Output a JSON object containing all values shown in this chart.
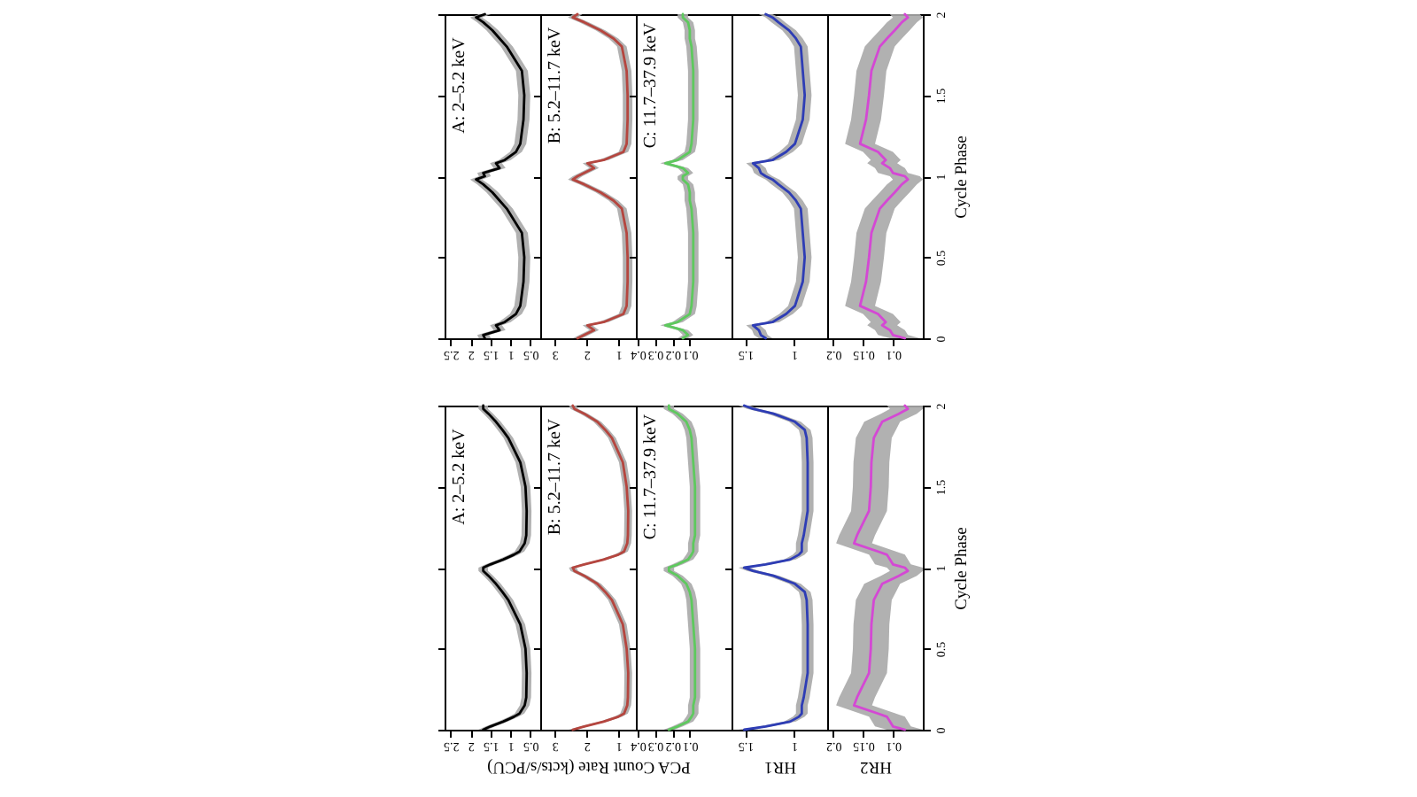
{
  "chart_data": [
    {
      "type": "line",
      "orientation": "horizontal",
      "x": [
        0,
        0.02,
        0.05,
        0.08,
        0.1,
        0.15,
        0.2,
        0.35,
        0.5,
        0.65,
        0.8,
        0.85,
        0.9,
        0.95,
        0.98,
        1,
        1.02,
        1.05,
        1.08,
        1.1,
        1.15,
        1.2,
        1.35,
        1.5,
        1.65,
        1.8,
        1.85,
        1.9,
        1.95,
        1.98,
        2
      ],
      "series": [
        {
          "color": "#000000",
          "values": [
            1.64,
            1.68,
            1.27,
            1.36,
            1.14,
            0.86,
            0.75,
            0.67,
            0.65,
            0.71,
            1.09,
            1.27,
            1.45,
            1.68,
            1.86,
            1.64,
            1.68,
            1.27,
            1.36,
            1.14,
            0.86,
            0.75,
            0.67,
            0.65,
            0.71,
            1.09,
            1.27,
            1.45,
            1.68,
            1.86,
            1.64
          ],
          "lower": [
            1.49,
            1.53,
            1.12,
            1.21,
            0.99,
            0.71,
            0.6,
            0.52,
            0.5,
            0.56,
            0.94,
            1.12,
            1.3,
            1.53,
            1.71,
            1.49,
            1.53,
            1.12,
            1.21,
            0.99,
            0.71,
            0.6,
            0.52,
            0.5,
            0.56,
            0.94,
            1.12,
            1.3,
            1.53,
            1.71,
            1.49
          ],
          "upper": [
            1.79,
            1.83,
            1.42,
            1.51,
            1.29,
            1.01,
            0.9,
            0.82,
            0.8,
            0.86,
            1.24,
            1.42,
            1.6,
            1.83,
            2.01,
            1.79,
            1.83,
            1.42,
            1.51,
            1.29,
            1.01,
            0.9,
            0.82,
            0.8,
            0.86,
            1.24,
            1.42,
            1.6,
            1.83,
            2.01,
            1.79
          ]
        }
      ],
      "xlim": [
        2.65,
        0.25
      ],
      "xticks": [
        2.5,
        2,
        1.5,
        1,
        0.5
      ],
      "ylim": [
        0,
        2
      ],
      "yticks": [
        0,
        0.5,
        1,
        1.5,
        2
      ],
      "tick_labels": "x",
      "annotations": [
        "A: 2–5.2 keV"
      ]
    },
    {
      "type": "line",
      "orientation": "horizontal",
      "x": [
        0,
        0.02,
        0.05,
        0.08,
        0.1,
        0.15,
        0.2,
        0.35,
        0.5,
        0.65,
        0.8,
        0.85,
        0.9,
        0.95,
        0.98,
        1,
        1.02,
        1.05,
        1.08,
        1.1,
        1.15,
        1.2,
        1.35,
        1.5,
        1.65,
        1.8,
        1.85,
        1.9,
        1.95,
        1.98,
        2
      ],
      "series": [
        {
          "color": "#b5463f",
          "values": [
            2.28,
            2.07,
            1.76,
            1.97,
            1.46,
            0.84,
            0.74,
            0.71,
            0.71,
            0.74,
            0.89,
            1.15,
            1.56,
            2.07,
            2.43,
            2.28,
            2.07,
            1.76,
            1.97,
            1.46,
            0.84,
            0.74,
            0.71,
            0.71,
            0.74,
            0.89,
            1.15,
            1.56,
            2.07,
            2.43,
            2.28
          ],
          "lower": [
            2.13,
            1.92,
            1.61,
            1.82,
            1.31,
            0.69,
            0.59,
            0.56,
            0.56,
            0.59,
            0.74,
            1.0,
            1.41,
            1.92,
            2.28,
            2.13,
            1.92,
            1.61,
            1.82,
            1.31,
            0.69,
            0.59,
            0.56,
            0.56,
            0.59,
            0.74,
            1.0,
            1.41,
            1.92,
            2.28,
            2.13
          ],
          "upper": [
            2.43,
            2.22,
            1.91,
            2.12,
            1.61,
            0.99,
            0.89,
            0.86,
            0.86,
            0.89,
            1.04,
            1.3,
            1.71,
            2.22,
            2.58,
            2.43,
            2.22,
            1.91,
            2.12,
            1.61,
            0.99,
            0.89,
            0.86,
            0.86,
            0.89,
            1.04,
            1.3,
            1.71,
            2.22,
            2.58,
            2.43
          ]
        }
      ],
      "xlim": [
        3.45,
        0.45
      ],
      "xticks": [
        3,
        2,
        1
      ],
      "ylim": [
        0,
        2
      ],
      "yticks": [
        0,
        0.5,
        1,
        1.5,
        2
      ],
      "tick_labels": "x",
      "annotations": [
        "B: 5.2–11.7 keV"
      ]
    },
    {
      "type": "line",
      "orientation": "horizontal",
      "x": [
        0,
        0.02,
        0.05,
        0.08,
        0.1,
        0.15,
        0.2,
        0.35,
        0.5,
        0.65,
        0.8,
        0.85,
        0.9,
        0.95,
        0.98,
        1,
        1.02,
        1.05,
        1.08,
        1.1,
        1.15,
        1.2,
        1.35,
        1.5,
        1.65,
        1.8,
        1.85,
        1.9,
        1.95,
        1.98,
        2
      ],
      "series": [
        {
          "color": "#5ec95e",
          "values": [
            0.14,
            0.11,
            0.14,
            0.24,
            0.17,
            0.1,
            0.09,
            0.08,
            0.08,
            0.08,
            0.09,
            0.1,
            0.1,
            0.11,
            0.14,
            0.14,
            0.11,
            0.14,
            0.24,
            0.17,
            0.1,
            0.09,
            0.08,
            0.08,
            0.08,
            0.09,
            0.1,
            0.1,
            0.11,
            0.14,
            0.14
          ],
          "lower": [
            0.11,
            0.08,
            0.11,
            0.21,
            0.14,
            0.07,
            0.06,
            0.05,
            0.05,
            0.05,
            0.06,
            0.07,
            0.07,
            0.08,
            0.11,
            0.11,
            0.08,
            0.11,
            0.21,
            0.14,
            0.07,
            0.06,
            0.05,
            0.05,
            0.05,
            0.06,
            0.07,
            0.07,
            0.08,
            0.11,
            0.11
          ],
          "upper": [
            0.17,
            0.14,
            0.17,
            0.27,
            0.2,
            0.13,
            0.12,
            0.11,
            0.11,
            0.11,
            0.12,
            0.13,
            0.13,
            0.14,
            0.17,
            0.17,
            0.14,
            0.17,
            0.27,
            0.2,
            0.13,
            0.12,
            0.11,
            0.11,
            0.11,
            0.12,
            0.13,
            0.13,
            0.14,
            0.17,
            0.17
          ]
        }
      ],
      "xlim": [
        0.41,
        -0.14
      ],
      "xticks": [
        0.4,
        0.3,
        0.2,
        0.1
      ],
      "ylim": [
        0,
        2
      ],
      "yticks": [
        0,
        0.5,
        1,
        1.5,
        2
      ],
      "tick_labels": "x",
      "annotations": [
        "C: 11.7–37.9 keV"
      ]
    },
    {
      "type": "line",
      "orientation": "horizontal",
      "x": [
        0,
        0.02,
        0.05,
        0.08,
        0.1,
        0.15,
        0.2,
        0.35,
        0.5,
        0.65,
        0.8,
        0.85,
        0.9,
        0.95,
        0.98,
        1,
        1.02,
        1.05,
        1.08,
        1.1,
        1.15,
        1.2,
        1.35,
        1.5,
        1.65,
        1.8,
        1.85,
        1.9,
        1.95,
        1.98,
        2
      ],
      "series": [
        {
          "color": "#2e3db5",
          "values": [
            1.29,
            1.34,
            1.36,
            1.42,
            1.22,
            1.08,
            0.99,
            0.91,
            0.89,
            0.91,
            0.93,
            0.98,
            1.05,
            1.16,
            1.22,
            1.29,
            1.34,
            1.36,
            1.42,
            1.22,
            1.08,
            0.99,
            0.91,
            0.89,
            0.91,
            0.93,
            0.98,
            1.05,
            1.16,
            1.22,
            1.29
          ],
          "lower": [
            1.22,
            1.27,
            1.29,
            1.35,
            1.15,
            1.01,
            0.92,
            0.84,
            0.82,
            0.84,
            0.86,
            0.91,
            0.98,
            1.09,
            1.15,
            1.22,
            1.27,
            1.29,
            1.35,
            1.15,
            1.01,
            0.92,
            0.84,
            0.82,
            0.84,
            0.86,
            0.91,
            0.98,
            1.09,
            1.15,
            1.22
          ],
          "upper": [
            1.36,
            1.41,
            1.43,
            1.49,
            1.29,
            1.15,
            1.06,
            0.98,
            0.96,
            0.98,
            1.0,
            1.05,
            1.12,
            1.23,
            1.29,
            1.36,
            1.41,
            1.43,
            1.49,
            1.29,
            1.15,
            1.06,
            0.98,
            0.96,
            0.98,
            1.0,
            1.05,
            1.12,
            1.23,
            1.29,
            1.36
          ]
        }
      ],
      "xlim": [
        1.64,
        0.66
      ],
      "xticks": [
        1.5,
        1
      ],
      "ylim": [
        0,
        2
      ],
      "yticks": [
        0,
        0.5,
        1,
        1.5,
        2
      ],
      "tick_labels": "x"
    },
    {
      "type": "line",
      "orientation": "horizontal",
      "x": [
        0,
        0.02,
        0.05,
        0.08,
        0.1,
        0.15,
        0.2,
        0.35,
        0.5,
        0.65,
        0.8,
        0.85,
        0.9,
        0.95,
        0.98,
        1,
        1.02,
        1.05,
        1.08,
        1.1,
        1.15,
        1.2,
        1.35,
        1.5,
        1.65,
        1.8,
        1.85,
        1.9,
        1.95,
        1.98,
        2
      ],
      "series": [
        {
          "color": "#d448d4",
          "values": [
            0.08,
            0.1,
            0.105,
            0.118,
            0.112,
            0.125,
            0.155,
            0.145,
            0.14,
            0.136,
            0.122,
            0.11,
            0.097,
            0.085,
            0.075,
            0.08,
            0.1,
            0.105,
            0.118,
            0.112,
            0.125,
            0.155,
            0.145,
            0.14,
            0.136,
            0.122,
            0.11,
            0.097,
            0.085,
            0.075,
            0.08
          ],
          "lower": [
            0.055,
            0.075,
            0.08,
            0.093,
            0.087,
            0.1,
            0.13,
            0.12,
            0.115,
            0.111,
            0.097,
            0.085,
            0.072,
            0.06,
            0.05,
            0.055,
            0.075,
            0.08,
            0.093,
            0.087,
            0.1,
            0.13,
            0.12,
            0.115,
            0.111,
            0.097,
            0.085,
            0.072,
            0.06,
            0.05,
            0.055
          ],
          "upper": [
            0.105,
            0.125,
            0.13,
            0.143,
            0.137,
            0.15,
            0.18,
            0.17,
            0.165,
            0.161,
            0.147,
            0.135,
            0.122,
            0.11,
            0.1,
            0.105,
            0.125,
            0.13,
            0.143,
            0.137,
            0.15,
            0.18,
            0.17,
            0.165,
            0.161,
            0.147,
            0.135,
            0.122,
            0.11,
            0.1,
            0.105
          ]
        }
      ],
      "xlim": [
        0.21,
        0.05
      ],
      "xticks": [
        0.2,
        0.15,
        0.1
      ],
      "ylim": [
        0,
        2
      ],
      "yticks": [
        0,
        0.5,
        1,
        1.5,
        2
      ],
      "ylabel": "Cycle Phase"
    },
    {
      "type": "line",
      "orientation": "horizontal",
      "x": [
        0,
        0.02,
        0.05,
        0.08,
        0.1,
        0.15,
        0.2,
        0.35,
        0.5,
        0.65,
        0.8,
        0.85,
        0.9,
        0.95,
        0.98,
        1,
        1.02,
        1.05,
        1.08,
        1.1,
        1.15,
        1.2,
        1.35,
        1.5,
        1.65,
        1.8,
        1.85,
        1.9,
        1.95,
        1.98,
        2
      ],
      "series": [
        {
          "color": "#000000",
          "values": [
            1.68,
            1.5,
            1.18,
            0.91,
            0.77,
            0.64,
            0.6,
            0.59,
            0.62,
            0.75,
            1.05,
            1.2,
            1.36,
            1.55,
            1.68,
            1.68,
            1.5,
            1.18,
            0.91,
            0.77,
            0.64,
            0.6,
            0.59,
            0.62,
            0.75,
            1.05,
            1.2,
            1.36,
            1.55,
            1.68,
            1.68
          ],
          "lower": [
            1.56,
            1.38,
            1.06,
            0.79,
            0.65,
            0.52,
            0.48,
            0.47,
            0.5,
            0.63,
            0.93,
            1.08,
            1.24,
            1.43,
            1.56,
            1.56,
            1.38,
            1.06,
            0.79,
            0.65,
            0.52,
            0.48,
            0.47,
            0.5,
            0.63,
            0.93,
            1.08,
            1.24,
            1.43,
            1.56,
            1.56
          ],
          "upper": [
            1.8,
            1.62,
            1.3,
            1.03,
            0.89,
            0.76,
            0.72,
            0.71,
            0.74,
            0.87,
            1.17,
            1.32,
            1.48,
            1.67,
            1.8,
            1.8,
            1.62,
            1.3,
            1.03,
            0.89,
            0.76,
            0.72,
            0.71,
            0.74,
            0.87,
            1.17,
            1.32,
            1.48,
            1.67,
            1.8,
            1.8
          ]
        }
      ],
      "xlim": [
        2.65,
        0.25
      ],
      "xticks": [
        2.5,
        2,
        1.5,
        1,
        0.5
      ],
      "ylim": [
        0,
        2
      ],
      "yticks": [
        0,
        0.5,
        1,
        1.5,
        2
      ],
      "tick_labels": "x",
      "annotations": [
        "A: 2–5.2 keV"
      ]
    },
    {
      "type": "line",
      "orientation": "horizontal",
      "x": [
        0,
        0.02,
        0.05,
        0.08,
        0.1,
        0.15,
        0.2,
        0.35,
        0.5,
        0.65,
        0.8,
        0.85,
        0.9,
        0.95,
        0.98,
        1,
        1.02,
        1.05,
        1.08,
        1.1,
        1.15,
        1.2,
        1.35,
        1.5,
        1.65,
        1.8,
        1.85,
        1.9,
        1.95,
        1.98,
        2
      ],
      "series": [
        {
          "color": "#b5463f",
          "values": [
            2.43,
            2.07,
            1.46,
            1.0,
            0.82,
            0.72,
            0.7,
            0.69,
            0.74,
            0.86,
            1.2,
            1.41,
            1.66,
            2.07,
            2.38,
            2.43,
            2.07,
            1.46,
            1.0,
            0.82,
            0.72,
            0.7,
            0.69,
            0.74,
            0.86,
            1.2,
            1.41,
            1.66,
            2.07,
            2.38,
            2.43
          ],
          "lower": [
            2.31,
            1.95,
            1.34,
            0.88,
            0.7,
            0.6,
            0.58,
            0.57,
            0.62,
            0.74,
            1.08,
            1.29,
            1.54,
            1.95,
            2.26,
            2.31,
            1.95,
            1.34,
            0.88,
            0.7,
            0.6,
            0.58,
            0.57,
            0.62,
            0.74,
            1.08,
            1.29,
            1.54,
            1.95,
            2.26,
            2.31
          ],
          "upper": [
            2.55,
            2.19,
            1.58,
            1.12,
            0.94,
            0.84,
            0.82,
            0.81,
            0.86,
            0.98,
            1.32,
            1.53,
            1.78,
            2.19,
            2.5,
            2.55,
            2.19,
            1.58,
            1.12,
            0.94,
            0.84,
            0.82,
            0.81,
            0.86,
            0.98,
            1.32,
            1.53,
            1.78,
            2.19,
            2.5,
            2.55
          ]
        }
      ],
      "xlim": [
        3.45,
        0.45
      ],
      "xticks": [
        3,
        2,
        1
      ],
      "ylim": [
        0,
        2
      ],
      "yticks": [
        0,
        0.5,
        1,
        1.5,
        2
      ],
      "tick_labels": "x",
      "annotations": [
        "B: 5.2–11.7 keV"
      ],
      "xlabel": "PCA Count Rate (kcts/s/PCU)"
    },
    {
      "type": "line",
      "orientation": "horizontal",
      "x": [
        0,
        0.02,
        0.05,
        0.08,
        0.1,
        0.15,
        0.2,
        0.35,
        0.5,
        0.65,
        0.8,
        0.85,
        0.9,
        0.95,
        0.98,
        1,
        1.02,
        1.05,
        1.08,
        1.1,
        1.15,
        1.2,
        1.35,
        1.5,
        1.65,
        1.8,
        1.85,
        1.9,
        1.95,
        1.98,
        2
      ],
      "series": [
        {
          "color": "#5ec95e",
          "values": [
            0.22,
            0.17,
            0.11,
            0.09,
            0.08,
            0.08,
            0.07,
            0.07,
            0.07,
            0.08,
            0.09,
            0.1,
            0.12,
            0.17,
            0.22,
            0.22,
            0.17,
            0.11,
            0.09,
            0.08,
            0.08,
            0.07,
            0.07,
            0.07,
            0.08,
            0.09,
            0.1,
            0.12,
            0.17,
            0.22,
            0.22
          ],
          "lower": [
            0.19,
            0.14,
            0.08,
            0.06,
            0.05,
            0.05,
            0.04,
            0.04,
            0.04,
            0.05,
            0.06,
            0.07,
            0.09,
            0.14,
            0.19,
            0.19,
            0.14,
            0.08,
            0.06,
            0.05,
            0.05,
            0.04,
            0.04,
            0.04,
            0.05,
            0.06,
            0.07,
            0.09,
            0.14,
            0.19,
            0.19
          ],
          "upper": [
            0.25,
            0.2,
            0.14,
            0.12,
            0.11,
            0.11,
            0.1,
            0.1,
            0.1,
            0.11,
            0.12,
            0.13,
            0.15,
            0.2,
            0.25,
            0.25,
            0.2,
            0.14,
            0.12,
            0.11,
            0.11,
            0.1,
            0.1,
            0.1,
            0.11,
            0.12,
            0.13,
            0.15,
            0.2,
            0.25,
            0.25
          ]
        }
      ],
      "xlim": [
        0.41,
        -0.14
      ],
      "xticks": [
        0.4,
        0.3,
        0.2,
        0.1
      ],
      "ylim": [
        0,
        2
      ],
      "yticks": [
        0,
        0.5,
        1,
        1.5,
        2
      ],
      "tick_labels": "x",
      "annotations": [
        "C: 11.7–37.9 keV"
      ]
    },
    {
      "type": "line",
      "orientation": "horizontal",
      "x": [
        0,
        0.02,
        0.05,
        0.08,
        0.1,
        0.15,
        0.2,
        0.35,
        0.5,
        0.65,
        0.8,
        0.85,
        0.9,
        0.95,
        0.98,
        1,
        1.02,
        1.05,
        1.08,
        1.1,
        1.15,
        1.2,
        1.35,
        1.5,
        1.65,
        1.8,
        1.85,
        1.9,
        1.95,
        1.98,
        2
      ],
      "series": [
        {
          "color": "#2e3db5",
          "values": [
            1.51,
            1.29,
            1.04,
            0.95,
            0.92,
            0.92,
            0.9,
            0.86,
            0.86,
            0.86,
            0.87,
            0.89,
            0.99,
            1.21,
            1.42,
            1.51,
            1.29,
            1.04,
            0.95,
            0.92,
            0.92,
            0.9,
            0.86,
            0.86,
            0.86,
            0.87,
            0.89,
            0.99,
            1.21,
            1.42,
            1.51
          ],
          "lower": [
            1.45,
            1.23,
            0.98,
            0.89,
            0.86,
            0.86,
            0.84,
            0.8,
            0.8,
            0.8,
            0.81,
            0.83,
            0.93,
            1.15,
            1.36,
            1.45,
            1.23,
            0.98,
            0.89,
            0.86,
            0.86,
            0.84,
            0.8,
            0.8,
            0.8,
            0.81,
            0.83,
            0.93,
            1.15,
            1.36,
            1.45
          ],
          "upper": [
            1.57,
            1.35,
            1.1,
            1.01,
            0.98,
            0.98,
            0.96,
            0.92,
            0.92,
            0.92,
            0.93,
            0.95,
            1.05,
            1.27,
            1.48,
            1.57,
            1.35,
            1.1,
            1.01,
            0.98,
            0.98,
            0.96,
            0.92,
            0.92,
            0.92,
            0.93,
            0.95,
            1.05,
            1.27,
            1.48,
            1.57
          ]
        }
      ],
      "xlim": [
        1.64,
        0.66
      ],
      "xticks": [
        1.5,
        1
      ],
      "ylim": [
        0,
        2
      ],
      "yticks": [
        0,
        0.5,
        1,
        1.5,
        2
      ],
      "tick_labels": "x",
      "xlabel": "HR1"
    },
    {
      "type": "line",
      "orientation": "horizontal",
      "x": [
        0,
        0.02,
        0.05,
        0.08,
        0.1,
        0.15,
        0.2,
        0.35,
        0.5,
        0.65,
        0.8,
        0.85,
        0.9,
        0.95,
        0.98,
        1,
        1.02,
        1.05,
        1.08,
        1.1,
        1.15,
        1.2,
        1.35,
        1.5,
        1.65,
        1.8,
        1.85,
        1.9,
        1.95,
        1.98,
        2
      ],
      "series": [
        {
          "color": "#d448d4",
          "values": [
            0.08,
            0.1,
            0.105,
            0.11,
            0.125,
            0.165,
            0.16,
            0.14,
            0.137,
            0.136,
            0.132,
            0.125,
            0.118,
            0.09,
            0.075,
            0.08,
            0.1,
            0.105,
            0.11,
            0.125,
            0.165,
            0.16,
            0.14,
            0.137,
            0.136,
            0.132,
            0.125,
            0.118,
            0.09,
            0.075,
            0.08
          ],
          "lower": [
            0.05,
            0.07,
            0.075,
            0.08,
            0.095,
            0.135,
            0.13,
            0.11,
            0.107,
            0.106,
            0.102,
            0.095,
            0.088,
            0.06,
            0.05,
            0.05,
            0.07,
            0.075,
            0.08,
            0.095,
            0.135,
            0.13,
            0.11,
            0.107,
            0.106,
            0.102,
            0.095,
            0.088,
            0.06,
            0.05,
            0.05
          ],
          "upper": [
            0.11,
            0.13,
            0.135,
            0.14,
            0.155,
            0.195,
            0.19,
            0.17,
            0.167,
            0.166,
            0.162,
            0.155,
            0.148,
            0.12,
            0.105,
            0.11,
            0.13,
            0.135,
            0.14,
            0.155,
            0.195,
            0.19,
            0.17,
            0.167,
            0.166,
            0.162,
            0.155,
            0.148,
            0.12,
            0.105,
            0.11
          ]
        }
      ],
      "xlim": [
        0.21,
        0.05
      ],
      "xticks": [
        0.2,
        0.15,
        0.1
      ],
      "ylim": [
        0,
        2
      ],
      "yticks": [
        0,
        0.5,
        1,
        1.5,
        2
      ],
      "ylabel": "Cycle Phase",
      "xlabel": "HR2"
    }
  ]
}
